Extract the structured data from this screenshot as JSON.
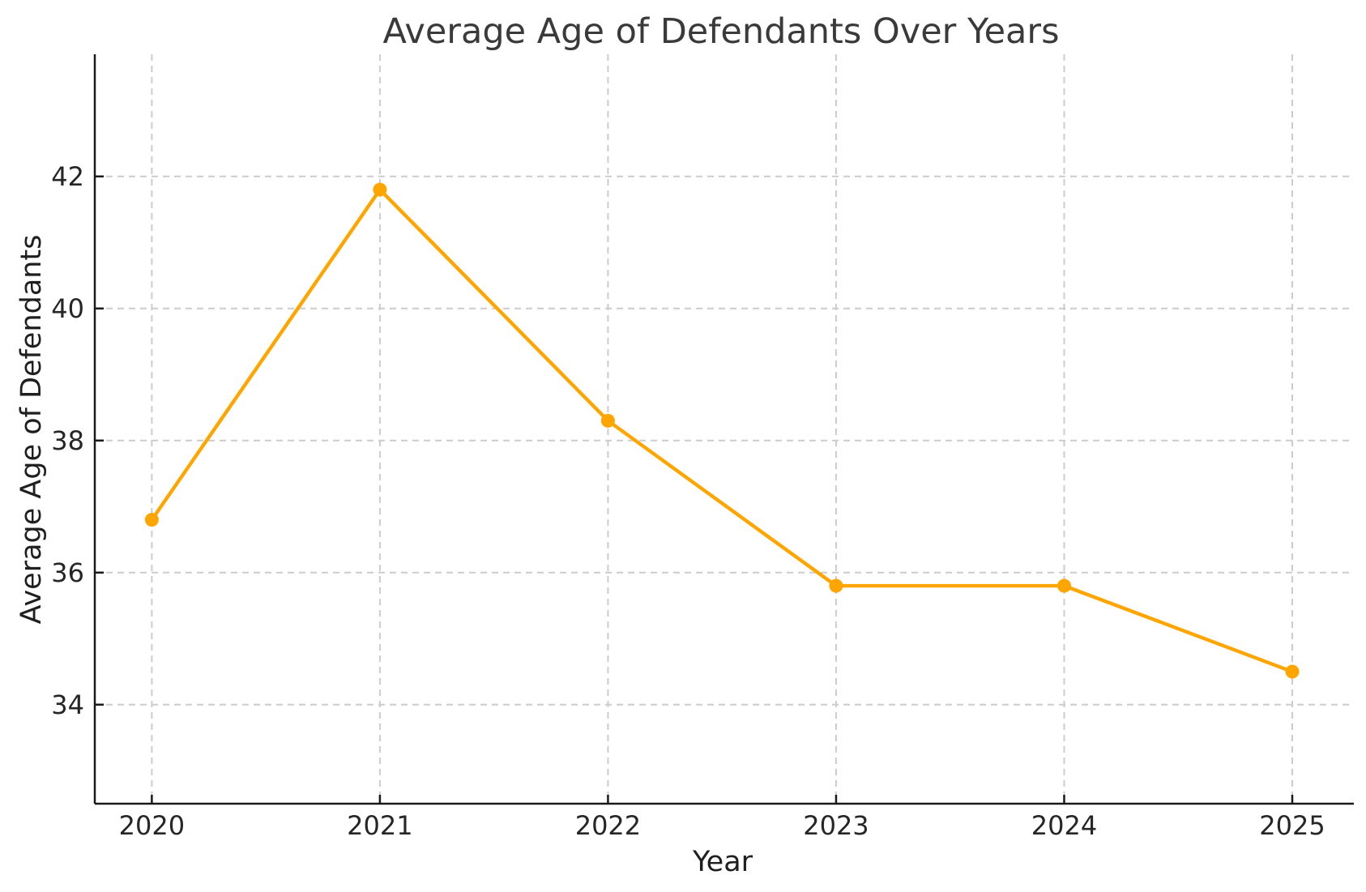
{
  "chart_data": {
    "type": "line",
    "title": "Average Age of Defendants Over Years",
    "xlabel": "Year",
    "ylabel": "Average Age of Defendants",
    "x": [
      2020,
      2021,
      2022,
      2023,
      2024,
      2025
    ],
    "series": [
      {
        "values": [
          36.8,
          41.8,
          38.3,
          35.8,
          35.8,
          34.5
        ]
      }
    ],
    "xticks": [
      2020,
      2021,
      2022,
      2023,
      2024,
      2025
    ],
    "yticks": [
      34,
      36,
      38,
      40,
      42
    ],
    "xlim": [
      2019.75,
      2025.27
    ],
    "ylim": [
      32.5,
      43.85
    ],
    "grid": true,
    "grid_style": "dashed",
    "legend": "none",
    "marker": "circle",
    "tick_direction": "in",
    "colors": {
      "line": "#FFA500",
      "marker": "#FFA500",
      "grid": "#CCCCCC",
      "axis": "#1A1A1A",
      "title_text": "#3A3A3A",
      "tick_text": "#262626",
      "background": "#FFFFFF"
    }
  }
}
